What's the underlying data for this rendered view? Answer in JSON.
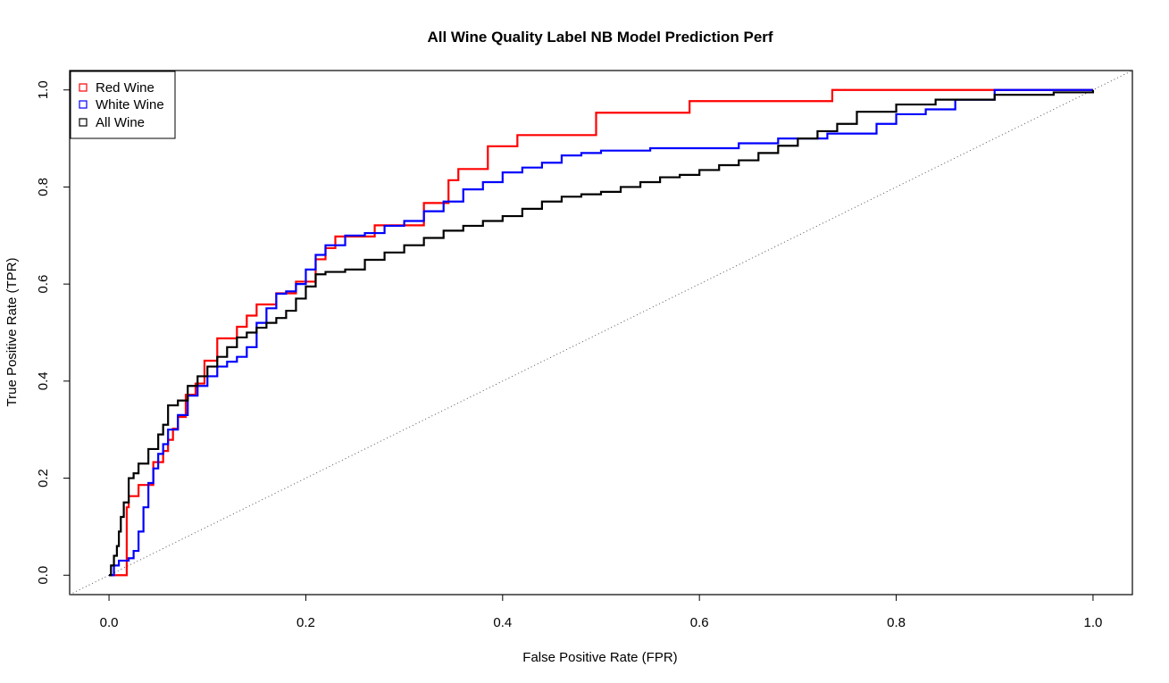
{
  "chart_data": {
    "type": "line",
    "title": "All Wine Quality Label NB Model Prediction Perf",
    "xlabel": "False Positive Rate (FPR)",
    "ylabel": "True Positive Rate (TPR)",
    "xlim": [
      -0.04,
      1.04
    ],
    "ylim": [
      -0.04,
      1.04
    ],
    "xticks": [
      "0.0",
      "0.2",
      "0.4",
      "0.6",
      "0.8",
      "1.0"
    ],
    "yticks": [
      "0.0",
      "0.2",
      "0.4",
      "0.6",
      "0.8",
      "1.0"
    ],
    "grid": false,
    "legend_position": "top-left",
    "reference_line": {
      "x": [
        0,
        1
      ],
      "y": [
        0,
        1
      ],
      "style": "dotted",
      "color": "#555555"
    },
    "series": [
      {
        "name": "Red Wine",
        "color": "#ff0000",
        "x": [
          0,
          0.018,
          0.018,
          0.02,
          0.02,
          0.03,
          0.03,
          0.045,
          0.045,
          0.055,
          0.055,
          0.06,
          0.06,
          0.065,
          0.065,
          0.07,
          0.07,
          0.078,
          0.078,
          0.088,
          0.088,
          0.097,
          0.097,
          0.11,
          0.11,
          0.13,
          0.13,
          0.14,
          0.14,
          0.15,
          0.15,
          0.17,
          0.17,
          0.19,
          0.19,
          0.21,
          0.21,
          0.22,
          0.22,
          0.23,
          0.23,
          0.27,
          0.27,
          0.32,
          0.32,
          0.345,
          0.345,
          0.355,
          0.355,
          0.385,
          0.385,
          0.415,
          0.415,
          0.495,
          0.495,
          0.59,
          0.59,
          0.735,
          0.735,
          1.0
        ],
        "y": [
          0,
          0,
          0.14,
          0.14,
          0.163,
          0.163,
          0.186,
          0.186,
          0.233,
          0.233,
          0.256,
          0.256,
          0.279,
          0.279,
          0.302,
          0.302,
          0.326,
          0.326,
          0.372,
          0.372,
          0.395,
          0.395,
          0.442,
          0.442,
          0.488,
          0.488,
          0.512,
          0.512,
          0.535,
          0.535,
          0.558,
          0.558,
          0.581,
          0.581,
          0.605,
          0.605,
          0.651,
          0.651,
          0.674,
          0.674,
          0.698,
          0.698,
          0.721,
          0.721,
          0.767,
          0.767,
          0.814,
          0.814,
          0.837,
          0.837,
          0.884,
          0.884,
          0.907,
          0.907,
          0.953,
          0.953,
          0.977,
          0.977,
          1.0,
          1.0
        ]
      },
      {
        "name": "White Wine",
        "color": "#0000ff",
        "x": [
          0,
          0.005,
          0.01,
          0.02,
          0.025,
          0.03,
          0.035,
          0.04,
          0.045,
          0.05,
          0.055,
          0.06,
          0.07,
          0.08,
          0.09,
          0.1,
          0.11,
          0.12,
          0.13,
          0.14,
          0.15,
          0.16,
          0.17,
          0.18,
          0.19,
          0.2,
          0.21,
          0.22,
          0.24,
          0.26,
          0.28,
          0.3,
          0.32,
          0.34,
          0.36,
          0.38,
          0.4,
          0.42,
          0.44,
          0.46,
          0.48,
          0.5,
          0.55,
          0.6,
          0.64,
          0.68,
          0.73,
          0.78,
          0.8,
          0.83,
          0.86,
          0.9,
          1.0
        ],
        "y": [
          0,
          0.02,
          0.03,
          0.035,
          0.05,
          0.09,
          0.14,
          0.19,
          0.22,
          0.25,
          0.27,
          0.3,
          0.33,
          0.37,
          0.39,
          0.41,
          0.43,
          0.44,
          0.45,
          0.47,
          0.52,
          0.55,
          0.58,
          0.585,
          0.6,
          0.63,
          0.66,
          0.68,
          0.7,
          0.705,
          0.72,
          0.73,
          0.75,
          0.77,
          0.795,
          0.81,
          0.83,
          0.84,
          0.85,
          0.865,
          0.87,
          0.875,
          0.88,
          0.88,
          0.89,
          0.9,
          0.91,
          0.93,
          0.95,
          0.96,
          0.98,
          1.0,
          1.0
        ]
      },
      {
        "name": "All Wine",
        "color": "#000000",
        "x": [
          0,
          0.002,
          0.005,
          0.008,
          0.01,
          0.012,
          0.015,
          0.02,
          0.025,
          0.03,
          0.04,
          0.05,
          0.055,
          0.06,
          0.07,
          0.08,
          0.09,
          0.1,
          0.11,
          0.12,
          0.13,
          0.14,
          0.15,
          0.16,
          0.17,
          0.18,
          0.19,
          0.2,
          0.21,
          0.22,
          0.24,
          0.26,
          0.28,
          0.3,
          0.32,
          0.34,
          0.36,
          0.38,
          0.4,
          0.42,
          0.44,
          0.46,
          0.48,
          0.5,
          0.52,
          0.54,
          0.56,
          0.58,
          0.6,
          0.62,
          0.64,
          0.66,
          0.68,
          0.7,
          0.72,
          0.74,
          0.76,
          0.8,
          0.84,
          0.9,
          0.96,
          1.0
        ],
        "y": [
          0,
          0.02,
          0.04,
          0.06,
          0.09,
          0.12,
          0.15,
          0.2,
          0.21,
          0.23,
          0.26,
          0.29,
          0.31,
          0.35,
          0.36,
          0.39,
          0.41,
          0.43,
          0.45,
          0.47,
          0.49,
          0.5,
          0.51,
          0.52,
          0.53,
          0.545,
          0.57,
          0.595,
          0.62,
          0.625,
          0.63,
          0.65,
          0.665,
          0.68,
          0.695,
          0.71,
          0.72,
          0.73,
          0.74,
          0.755,
          0.77,
          0.78,
          0.785,
          0.79,
          0.8,
          0.81,
          0.82,
          0.825,
          0.835,
          0.845,
          0.855,
          0.87,
          0.885,
          0.9,
          0.915,
          0.93,
          0.955,
          0.97,
          0.98,
          0.99,
          0.995,
          1.0
        ]
      }
    ]
  }
}
